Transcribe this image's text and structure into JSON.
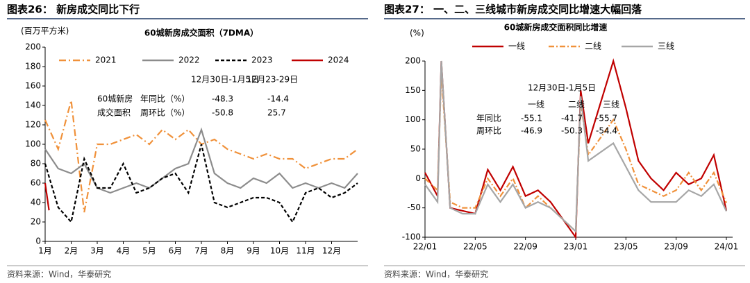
{
  "chart_data": [
    {
      "type": "line",
      "title": "图表26：  新房成交同比下行",
      "subtitle": "60城新房成交面积（7DMA）",
      "ylabel": "(百万平方米)",
      "xlim": [
        1,
        13
      ],
      "xticks": [
        {
          "value": 1,
          "label": "1月"
        },
        {
          "value": 2,
          "label": "2月"
        },
        {
          "value": 3,
          "label": "3月"
        },
        {
          "value": 4,
          "label": "4月"
        },
        {
          "value": 5,
          "label": "5月"
        },
        {
          "value": 6,
          "label": "6月"
        },
        {
          "value": 7,
          "label": "7月"
        },
        {
          "value": 8,
          "label": "8月"
        },
        {
          "value": 9,
          "label": "9月"
        },
        {
          "value": 10,
          "label": "10月"
        },
        {
          "value": 11,
          "label": "11月"
        },
        {
          "value": 12,
          "label": "12月"
        }
      ],
      "ylim": [
        0,
        200
      ],
      "yticks": [
        0,
        20,
        40,
        60,
        80,
        100,
        120,
        140,
        160,
        180,
        200
      ],
      "series": [
        {
          "name": "2021",
          "color": "#f0913a",
          "dash": "10,4,2,4",
          "x": [
            1,
            1.5,
            2,
            2.5,
            3,
            3.5,
            4,
            4.5,
            5,
            5.5,
            6,
            6.5,
            7,
            7.5,
            8,
            8.5,
            9,
            9.5,
            10,
            10.5,
            11,
            11.5,
            12,
            12.5,
            13
          ],
          "values": [
            125,
            95,
            145,
            30,
            100,
            100,
            105,
            110,
            100,
            115,
            105,
            115,
            100,
            105,
            95,
            90,
            85,
            90,
            85,
            85,
            75,
            80,
            85,
            85,
            95
          ]
        },
        {
          "name": "2022",
          "color": "#8c8c8c",
          "dash": "",
          "x": [
            1,
            1.5,
            2,
            2.5,
            3,
            3.5,
            4,
            4.5,
            5,
            5.5,
            6,
            6.5,
            7,
            7.5,
            8,
            8.5,
            9,
            9.5,
            10,
            10.5,
            11,
            11.5,
            12,
            12.5,
            13
          ],
          "values": [
            95,
            75,
            70,
            80,
            55,
            50,
            55,
            60,
            55,
            65,
            75,
            80,
            115,
            70,
            60,
            55,
            65,
            60,
            70,
            55,
            60,
            55,
            60,
            55,
            70
          ]
        },
        {
          "name": "2023",
          "color": "#000000",
          "dash": "5,3",
          "x": [
            1,
            1.5,
            2,
            2.5,
            3,
            3.5,
            4,
            4.5,
            5,
            5.5,
            6,
            6.5,
            7,
            7.5,
            8,
            8.5,
            9,
            9.5,
            10,
            10.5,
            11,
            11.5,
            12,
            12.5,
            13
          ],
          "values": [
            80,
            35,
            20,
            85,
            55,
            55,
            80,
            50,
            55,
            65,
            70,
            50,
            100,
            40,
            35,
            40,
            45,
            45,
            40,
            20,
            50,
            55,
            45,
            50,
            60
          ]
        },
        {
          "name": "2024",
          "color": "#c00000",
          "dash": "",
          "x": [
            1,
            1.15
          ],
          "values": [
            60,
            32
          ]
        }
      ],
      "table": {
        "headers": [
          "12月30日-1月5日",
          "12月23-29日"
        ],
        "group_label": [
          "60城新房",
          "成交面积"
        ],
        "rows": [
          {
            "label": "年同比（%）",
            "values": [
              -48.3,
              -14.4
            ]
          },
          {
            "label": "周环比（%）",
            "values": [
              -50.8,
              25.7
            ]
          }
        ]
      },
      "source": "资料来源：Wind，华泰研究"
    },
    {
      "type": "line",
      "title": "图表27：  一、二、三线城市新房成交同比增速大幅回落",
      "subtitle": "60城新房成交面积同比增速",
      "ylabel": "(%)",
      "xlim": [
        0,
        24.5
      ],
      "xticks": [
        {
          "value": 0,
          "label": "22/01"
        },
        {
          "value": 4,
          "label": "22/05"
        },
        {
          "value": 8,
          "label": "22/09"
        },
        {
          "value": 12,
          "label": "23/01"
        },
        {
          "value": 16,
          "label": "23/05"
        },
        {
          "value": 20,
          "label": "23/09"
        },
        {
          "value": 24,
          "label": "24/01"
        }
      ],
      "ylim": [
        -100,
        200
      ],
      "yticks": [
        -100,
        -50,
        0,
        50,
        100,
        150,
        200
      ],
      "series": [
        {
          "name": "一线",
          "color": "#c00000",
          "dash": "",
          "x": [
            0,
            1,
            1.3,
            2,
            3,
            4,
            5,
            6,
            7,
            8,
            9,
            10,
            12,
            12.4,
            13,
            15,
            16,
            17,
            18,
            19,
            20,
            21,
            22,
            23,
            24
          ],
          "values": [
            10,
            -30,
            200,
            -50,
            -55,
            -60,
            15,
            -20,
            20,
            -30,
            -20,
            -40,
            -100,
            150,
            60,
            200,
            120,
            30,
            0,
            -20,
            10,
            -10,
            0,
            40,
            -55
          ]
        },
        {
          "name": "二线",
          "color": "#f0913a",
          "dash": "8,3,2,3",
          "x": [
            0,
            1,
            1.3,
            2,
            3,
            4,
            5,
            6,
            7,
            8,
            9,
            10,
            12,
            12.4,
            13,
            15,
            16,
            17,
            18,
            19,
            20,
            21,
            22,
            23,
            24
          ],
          "values": [
            0,
            -20,
            180,
            -40,
            -50,
            -50,
            0,
            -30,
            0,
            -50,
            -30,
            -50,
            -90,
            130,
            40,
            100,
            50,
            -10,
            -20,
            -30,
            -20,
            10,
            -20,
            10,
            -41.7
          ]
        },
        {
          "name": "三线",
          "color": "#a6a6a6",
          "dash": "",
          "x": [
            0,
            1,
            1.3,
            2,
            3,
            4,
            5,
            6,
            7,
            8,
            9,
            10,
            12,
            12.4,
            13,
            15,
            16,
            17,
            18,
            19,
            20,
            21,
            22,
            23,
            24
          ],
          "values": [
            -10,
            -40,
            200,
            -50,
            -60,
            -60,
            -10,
            -40,
            -10,
            -50,
            -40,
            -50,
            -90,
            140,
            30,
            60,
            20,
            -20,
            -40,
            -40,
            -40,
            -20,
            -30,
            -10,
            -55.7
          ]
        }
      ],
      "table": {
        "headers": [
          "12月30日-1月5日"
        ],
        "columns": [
          "一线",
          "二线",
          "三线"
        ],
        "rows": [
          {
            "label": "年同比",
            "values": [
              -55.1,
              -41.7,
              -55.7
            ]
          },
          {
            "label": "周环比",
            "values": [
              -46.9,
              -50.3,
              -54.4
            ]
          }
        ]
      },
      "source": "资料来源：Wind，华泰研究"
    }
  ]
}
